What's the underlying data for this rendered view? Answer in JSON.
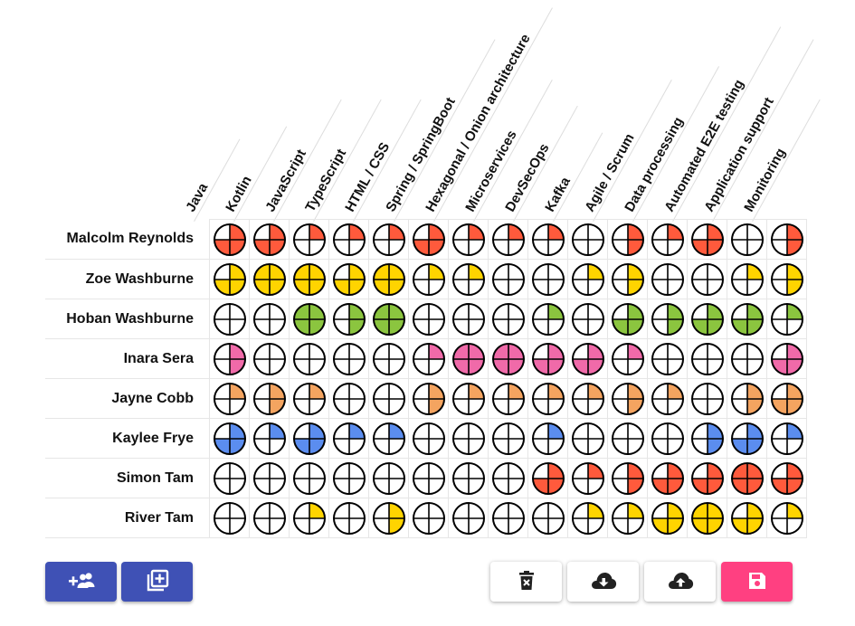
{
  "skills": [
    "Java",
    "Kotlin",
    "JavaScript",
    "TypeScript",
    "HTML / CSS",
    "Spring / SpringBoot",
    "Hexagonal / Onion architecture",
    "Microservices",
    "DevSecOps",
    "Kafka",
    "Agile / Scrum",
    "Data processing",
    "Automated E2E testing",
    "Application support",
    "Monitoring"
  ],
  "people": [
    {
      "name": "Malcolm Reynolds",
      "color": "#ff5a3c",
      "levels": [
        3,
        3,
        1,
        1,
        1,
        3,
        1,
        1,
        1,
        0,
        2,
        1,
        3,
        0,
        2
      ]
    },
    {
      "name": "Zoe Washburne",
      "color": "#ffd400",
      "levels": [
        3,
        4,
        4,
        3,
        4,
        1,
        1,
        0,
        0,
        1,
        2,
        0,
        0,
        1,
        2
      ]
    },
    {
      "name": "Hoban Washburne",
      "color": "#8bc53f",
      "levels": [
        0,
        0,
        4,
        2,
        4,
        0,
        0,
        0,
        1,
        0,
        3,
        2,
        3,
        3,
        1
      ]
    },
    {
      "name": "Inara Sera",
      "color": "#f06aa9",
      "levels": [
        2,
        0,
        0,
        0,
        0,
        1,
        4,
        4,
        3,
        3,
        1,
        0,
        0,
        0,
        3
      ]
    },
    {
      "name": "Jayne Cobb",
      "color": "#f4a460",
      "levels": [
        1,
        2,
        1,
        0,
        0,
        2,
        1,
        1,
        1,
        1,
        2,
        1,
        0,
        2,
        3
      ]
    },
    {
      "name": "Kaylee Frye",
      "color": "#5b8def",
      "levels": [
        3,
        1,
        3,
        1,
        1,
        0,
        0,
        0,
        1,
        0,
        0,
        0,
        2,
        3,
        1
      ]
    },
    {
      "name": "Simon Tam",
      "color": "#ff5a3c",
      "levels": [
        0,
        0,
        0,
        0,
        0,
        0,
        0,
        0,
        3,
        1,
        2,
        3,
        3,
        4,
        3
      ]
    },
    {
      "name": "River Tam",
      "color": "#ffd400",
      "levels": [
        0,
        0,
        1,
        0,
        2,
        0,
        0,
        0,
        0,
        1,
        1,
        3,
        4,
        3,
        1
      ]
    }
  ],
  "toolbar": {
    "add_person_icon": "group-add-icon",
    "add_skill_icon": "library-add-icon",
    "delete_icon": "delete-forever-icon",
    "download_icon": "cloud-download-icon",
    "upload_icon": "cloud-upload-icon",
    "save_icon": "save-icon",
    "primary_color": "#3f51b5",
    "accent_color": "#ff4081"
  }
}
